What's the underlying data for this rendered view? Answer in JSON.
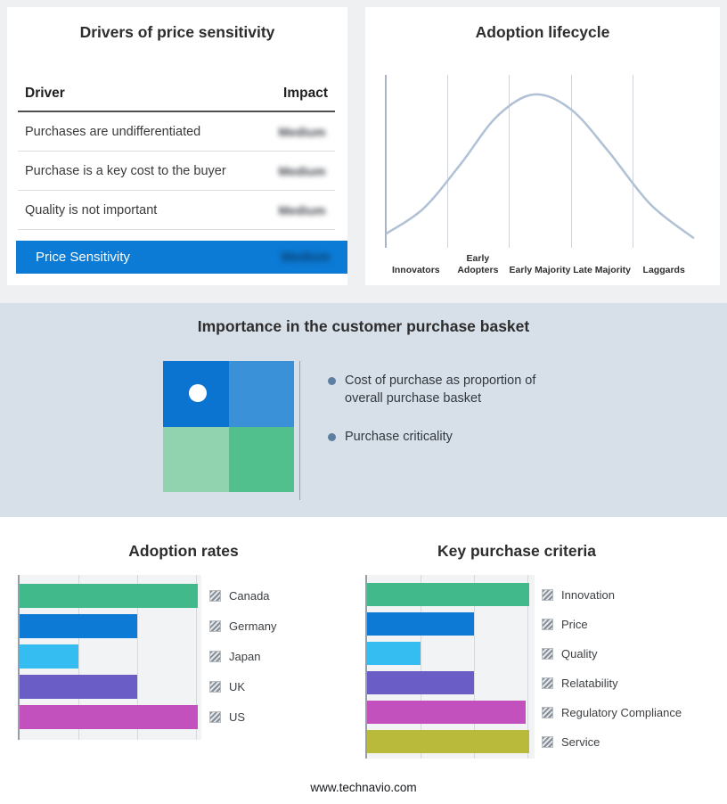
{
  "drivers_panel": {
    "title": "Drivers of price sensitivity",
    "columns": {
      "driver": "Driver",
      "impact": "Impact"
    },
    "rows": [
      {
        "driver": "Purchases are undifferentiated",
        "impact": "Medium"
      },
      {
        "driver": "Purchase is a key cost to the buyer",
        "impact": "Medium"
      },
      {
        "driver": "Quality is not important",
        "impact": "Medium"
      }
    ],
    "summary": {
      "label": "Price Sensitivity",
      "impact": "Medium"
    },
    "impacts_blurred": true,
    "highlight_color": "#0c7bd6"
  },
  "basket_panel": {
    "title": "Importance in the customer purchase basket",
    "bullets": [
      "Cost of purchase as proportion of overall purchase basket",
      "Purchase criticality"
    ],
    "quadrant_colors": {
      "top_left": "#0b74d0",
      "top_right": "#3a91d8",
      "bottom_left": "#90d3ae",
      "bottom_right": "#52c08c"
    },
    "band_color": "#d7e0e9"
  },
  "chart_data": [
    {
      "id": "adoption-lifecycle",
      "type": "line",
      "title": "Adoption lifecycle",
      "x_categories": [
        "Innovators",
        "Early Adopters",
        "Early Majority",
        "Late Majority",
        "Laggards"
      ],
      "curve": "bell",
      "curve_points": [
        {
          "x": 0.0,
          "y": 0.05
        },
        {
          "x": 0.12,
          "y": 0.22
        },
        {
          "x": 0.24,
          "y": 0.52
        },
        {
          "x": 0.36,
          "y": 0.85
        },
        {
          "x": 0.48,
          "y": 1.0
        },
        {
          "x": 0.6,
          "y": 0.9
        },
        {
          "x": 0.72,
          "y": 0.62
        },
        {
          "x": 0.86,
          "y": 0.25
        },
        {
          "x": 1.0,
          "y": 0.02
        }
      ],
      "grid": true,
      "line_color": "#b0c1d6"
    },
    {
      "id": "adoption-rates",
      "type": "bar",
      "title": "Adoption rates",
      "orientation": "horizontal",
      "categories": [
        "Canada",
        "Germany",
        "Japan",
        "UK",
        "US"
      ],
      "values": [
        100,
        66,
        33,
        66,
        100
      ],
      "colors": [
        "#41b98a",
        "#0d7ad6",
        "#35bdf2",
        "#6a5ec6",
        "#c251bd"
      ],
      "xlim": [
        0,
        100
      ],
      "grid": true,
      "legend_position": "right",
      "value_labels": false
    },
    {
      "id": "key-purchase-criteria",
      "type": "bar",
      "title": "Key purchase criteria",
      "orientation": "horizontal",
      "categories": [
        "Innovation",
        "Price",
        "Quality",
        "Relatability",
        "Regulatory Compliance",
        "Service"
      ],
      "values": [
        100,
        66,
        33,
        66,
        98,
        100
      ],
      "colors": [
        "#41b98a",
        "#0d7ad6",
        "#35bdf2",
        "#6a5ec6",
        "#c251bd",
        "#b9b93c"
      ],
      "xlim": [
        0,
        100
      ],
      "grid": true,
      "legend_position": "right",
      "value_labels": false
    }
  ],
  "footer": {
    "url": "www.technavio.com"
  }
}
